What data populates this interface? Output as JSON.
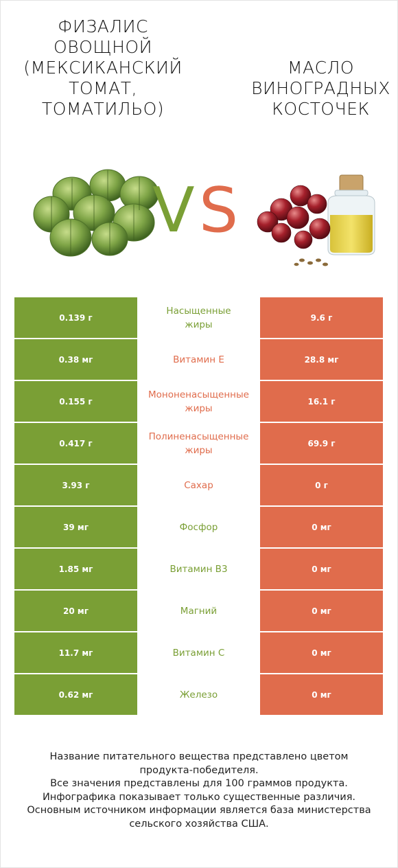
{
  "header": {
    "left_title": "Физалис\nовощной\n(мексиканский\nтомат,\nтоматильо)",
    "right_title": "Масло\nвиноградных\nкосточек",
    "vs_v": "V",
    "vs_s": "S"
  },
  "colors": {
    "left_winner": "#7a9f35",
    "right_winner": "#e06c4c"
  },
  "rows": [
    {
      "left": "0.139 г",
      "name_line1": "Насыщенные",
      "name_line2": "жиры",
      "right": "9.6 г",
      "winner": "green"
    },
    {
      "left": "0.38 мг",
      "name_line1": "Витамин E",
      "name_line2": "",
      "right": "28.8 мг",
      "winner": "red"
    },
    {
      "left": "0.155 г",
      "name_line1": "Мононенасыщенные",
      "name_line2": "жиры",
      "right": "16.1 г",
      "winner": "red"
    },
    {
      "left": "0.417 г",
      "name_line1": "Полиненасыщенные",
      "name_line2": "жиры",
      "right": "69.9 г",
      "winner": "red"
    },
    {
      "left": "3.93 г",
      "name_line1": "Сахар",
      "name_line2": "",
      "right": "0 г",
      "winner": "red"
    },
    {
      "left": "39 мг",
      "name_line1": "Фосфор",
      "name_line2": "",
      "right": "0 мг",
      "winner": "green"
    },
    {
      "left": "1.85 мг",
      "name_line1": "Витамин B3",
      "name_line2": "",
      "right": "0 мг",
      "winner": "green"
    },
    {
      "left": "20 мг",
      "name_line1": "Магний",
      "name_line2": "",
      "right": "0 мг",
      "winner": "green"
    },
    {
      "left": "11.7 мг",
      "name_line1": "Витамин C",
      "name_line2": "",
      "right": "0 мг",
      "winner": "green"
    },
    {
      "left": "0.62 мг",
      "name_line1": "Железо",
      "name_line2": "",
      "right": "0 мг",
      "winner": "green"
    }
  ],
  "footer": {
    "line1": "Название питательного вещества представлено цветом",
    "line2": "продукта-победителя.",
    "line3": "Все значения представлены для 100 граммов продукта.",
    "line4": "Инфографика показывает только существенные различия.",
    "line5": "Основным источником информации является база министерства",
    "line6": "сельского хозяйства США."
  }
}
